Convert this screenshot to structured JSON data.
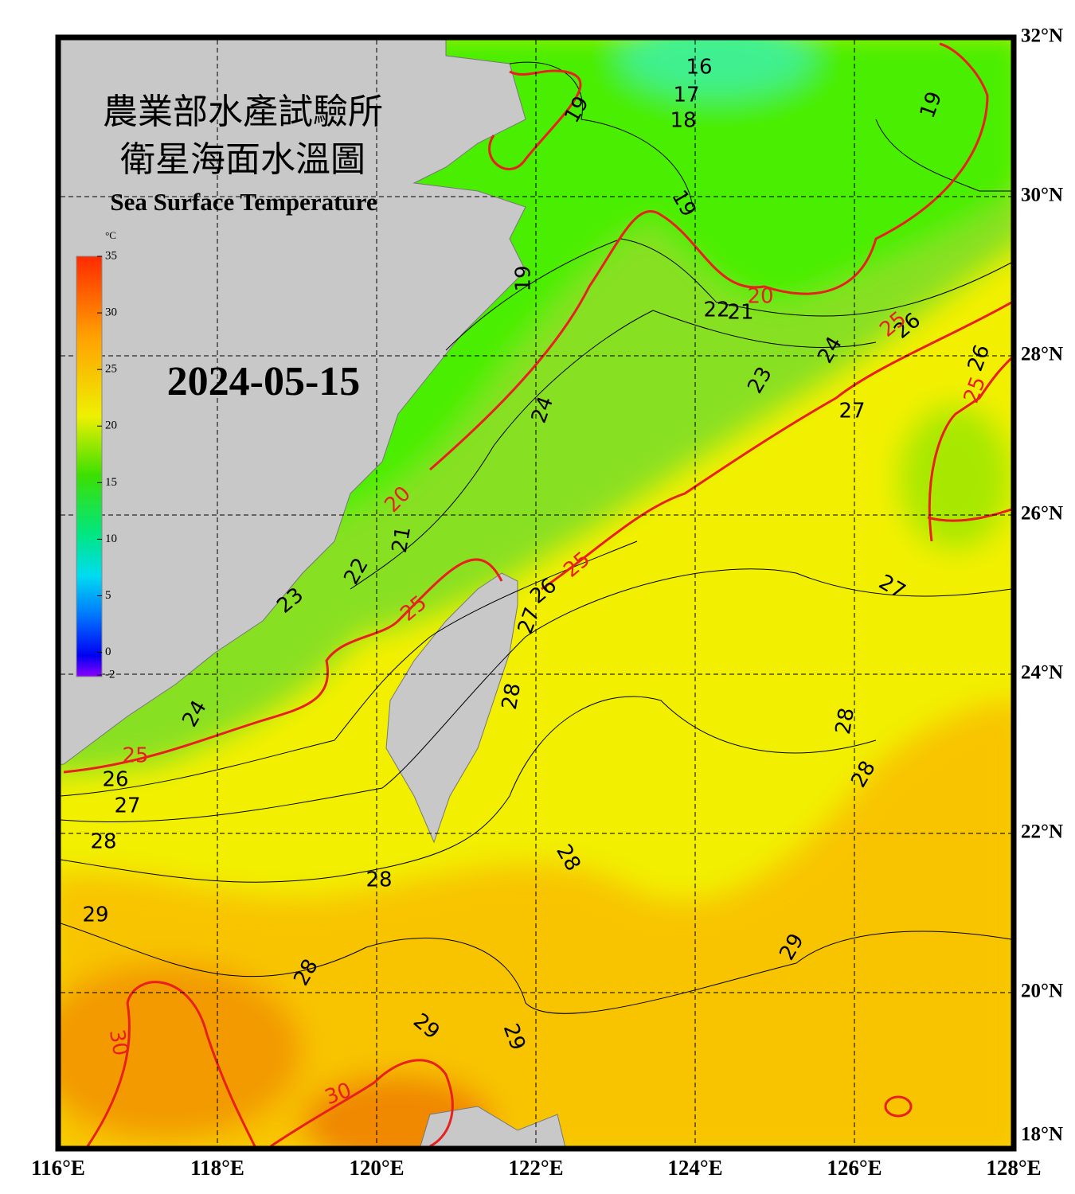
{
  "title_zh": [
    "農業部水產試驗所",
    "衛星海面水溫圖"
  ],
  "title_en": "Sea Surface Temperature",
  "date": "2024-05-15",
  "colorbar": {
    "unit": "°C",
    "range": [
      -2,
      35
    ],
    "ticks": [
      35,
      30,
      25,
      20,
      15,
      10,
      5,
      0,
      -2
    ]
  },
  "longitude_labels": [
    "116°E",
    "118°E",
    "120°E",
    "122°E",
    "124°E",
    "126°E",
    "128°E"
  ],
  "latitude_labels": [
    "32°N",
    "30°N",
    "28°N",
    "26°N",
    "24°N",
    "22°N",
    "20°N",
    "18°N"
  ],
  "contour_labels": [
    "16",
    "17",
    "18",
    "19",
    "19",
    "19",
    "19",
    "21",
    "22",
    "21",
    "22",
    "23",
    "23",
    "24",
    "24",
    "24",
    "26",
    "26",
    "26",
    "26",
    "27",
    "27",
    "27",
    "27",
    "28",
    "28",
    "28",
    "28",
    "28",
    "28",
    "28",
    "29",
    "29",
    "29",
    "29"
  ],
  "isotherm_labels": [
    "20",
    "20",
    "25",
    "25",
    "25",
    "25",
    "25",
    "30",
    "30"
  ],
  "isotherm_color": "#e82020"
}
